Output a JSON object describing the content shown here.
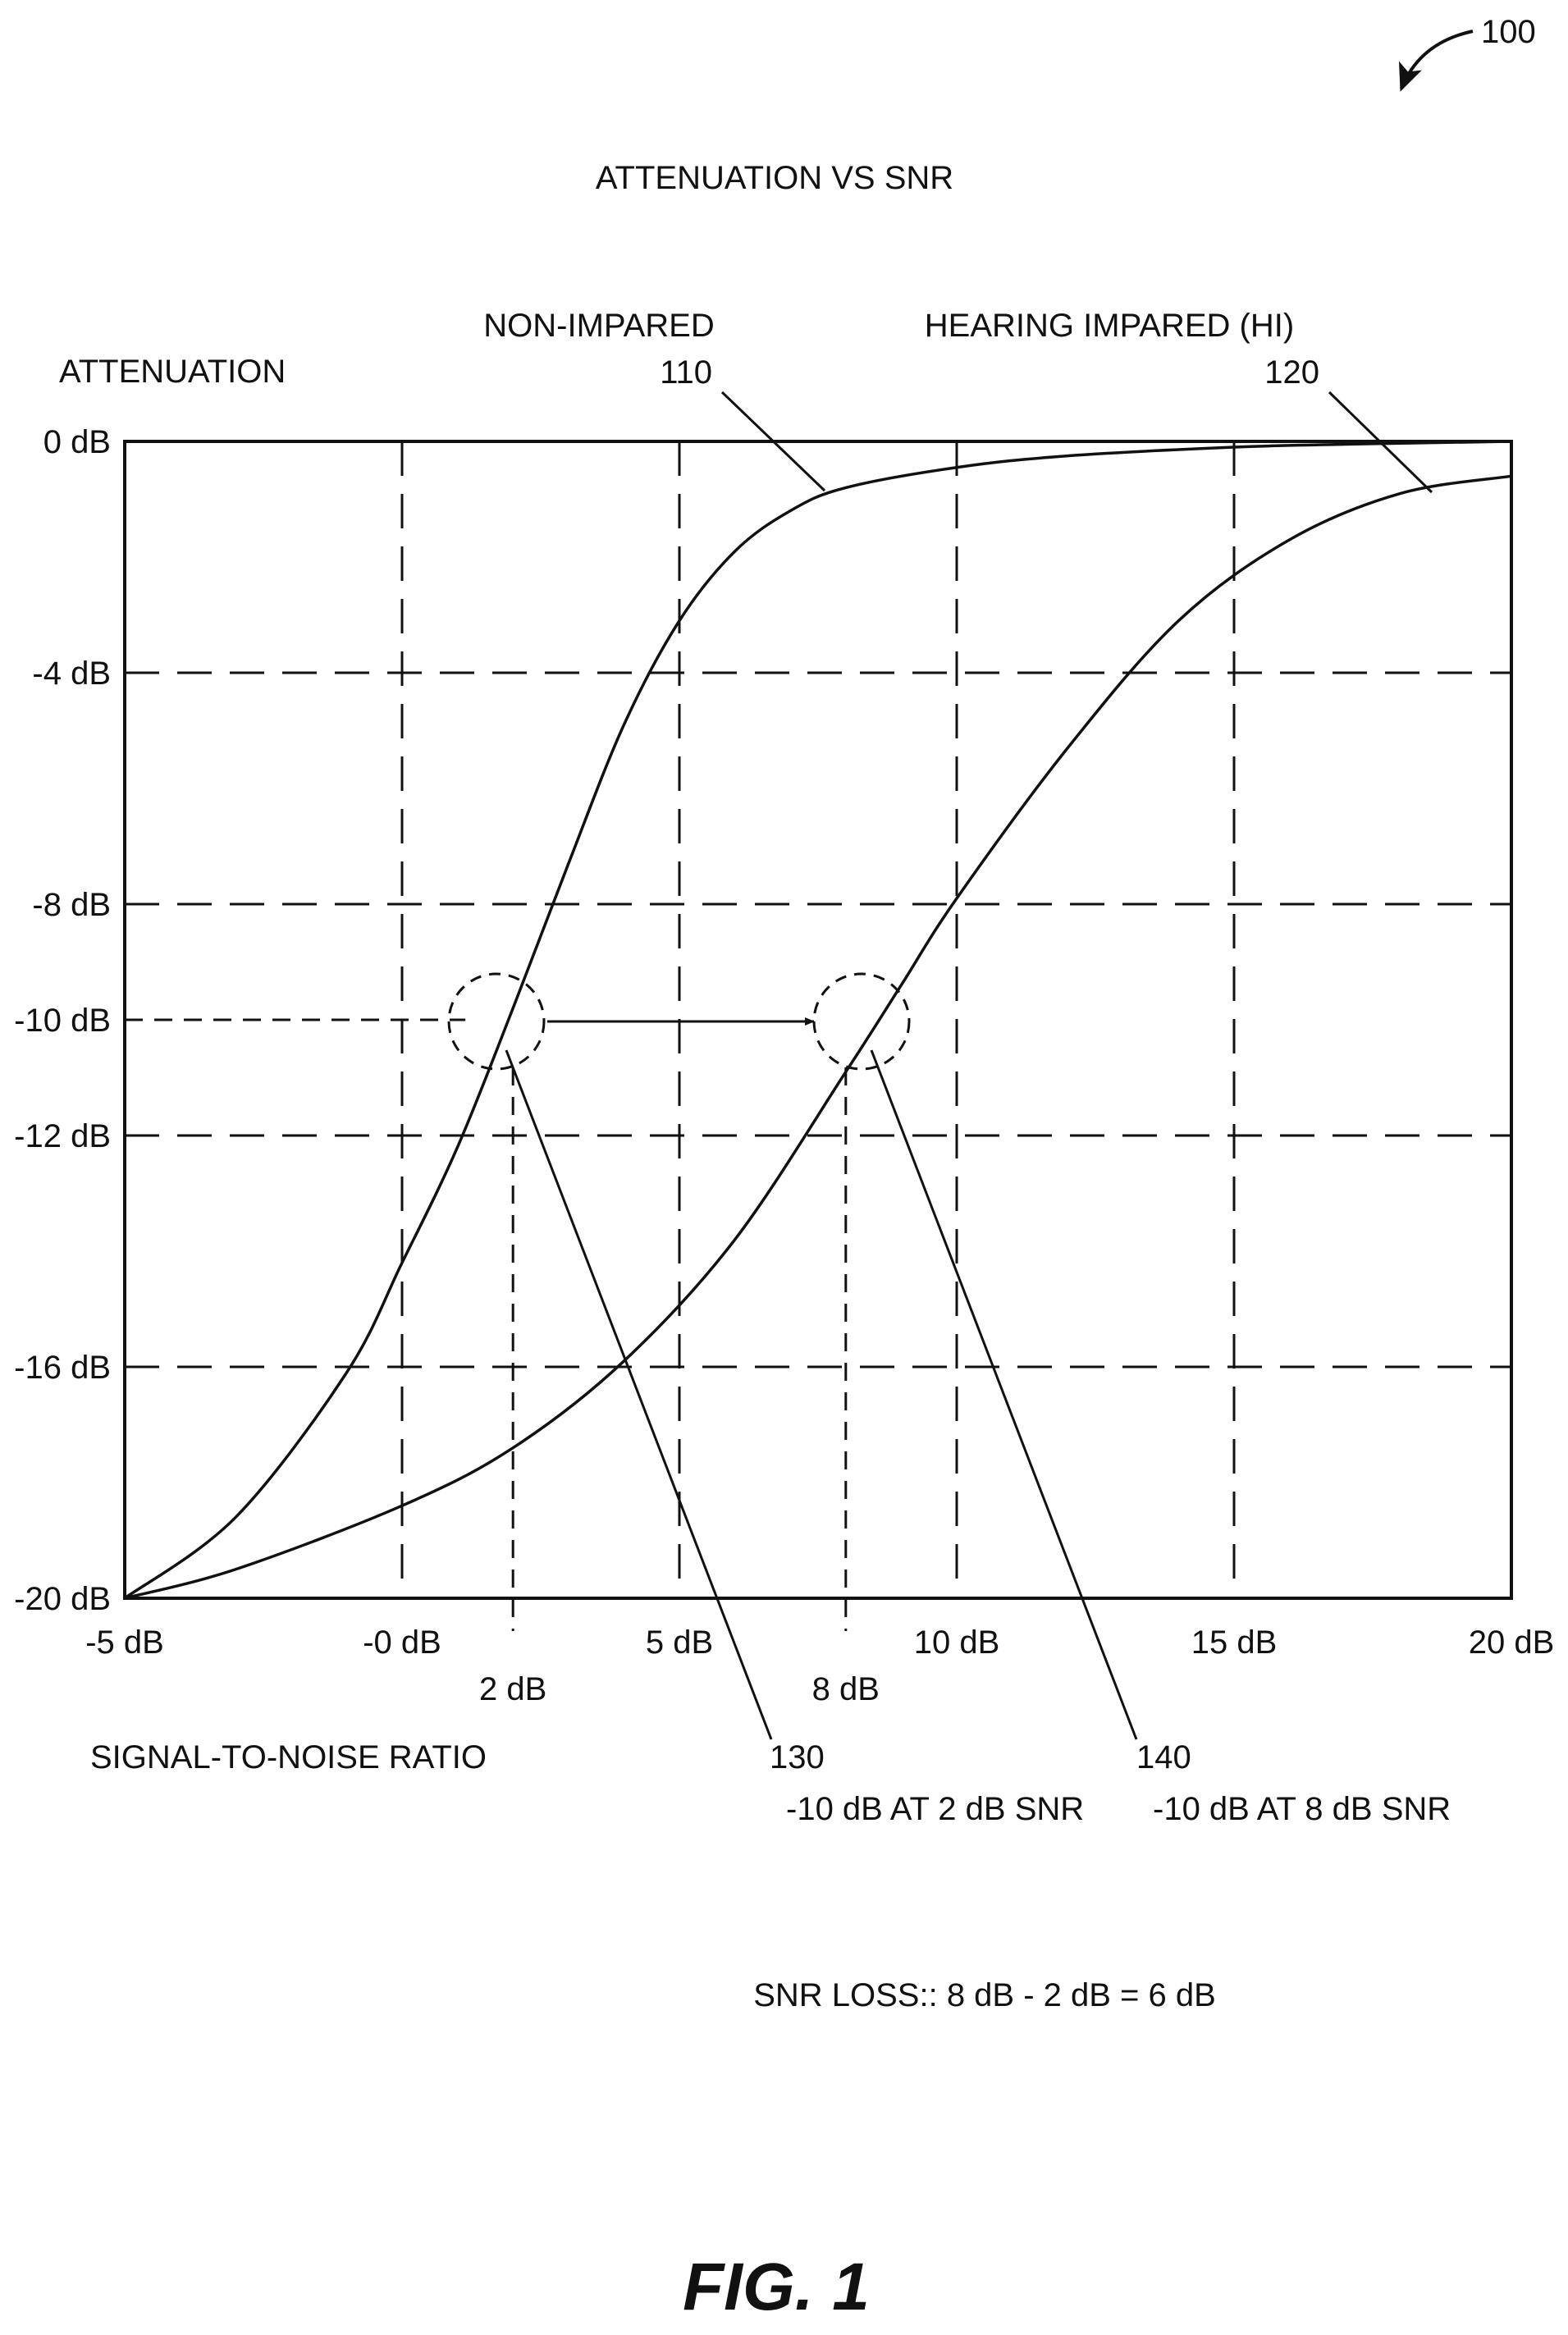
{
  "figure": {
    "ref_number": "100",
    "caption": "FIG. 1",
    "snr_loss_note": "SNR LOSS:: 8 dB - 2 dB = 6 dB"
  },
  "chart_data": {
    "type": "line",
    "title": "ATTENUATION VS SNR",
    "xlabel": "SIGNAL-TO-NOISE RATIO",
    "ylabel": "ATTENUATION",
    "xlim": [
      -5,
      20
    ],
    "ylim": [
      -20,
      0
    ],
    "grid": true,
    "x_ticks": [
      {
        "value": -5,
        "label": "-5 dB"
      },
      {
        "value": 0,
        "label": "-0 dB"
      },
      {
        "value": 5,
        "label": "5 dB"
      },
      {
        "value": 10,
        "label": "10 dB"
      },
      {
        "value": 15,
        "label": "15 dB"
      },
      {
        "value": 20,
        "label": "20 dB"
      }
    ],
    "x_extra_ticks": [
      {
        "value": 2,
        "label": "2 dB"
      },
      {
        "value": 8,
        "label": "8 dB"
      }
    ],
    "y_ticks": [
      {
        "value": 0,
        "label": "0 dB"
      },
      {
        "value": -4,
        "label": "-4 dB"
      },
      {
        "value": -8,
        "label": "-8 dB"
      },
      {
        "value": -10,
        "label": "-10 dB"
      },
      {
        "value": -12,
        "label": "-12 dB"
      },
      {
        "value": -16,
        "label": "-16 dB"
      },
      {
        "value": -20,
        "label": "-20 dB"
      }
    ],
    "series": [
      {
        "name": "NON-IMPARED",
        "ref": "110",
        "x": [
          -5,
          -3,
          -1,
          0,
          1,
          2,
          3,
          4,
          5,
          6,
          7,
          8,
          10,
          12,
          15,
          17,
          20
        ],
        "y": [
          -20,
          -18.6,
          -16.1,
          -14.2,
          -12.2,
          -9.8,
          -7.3,
          -4.9,
          -3.1,
          -1.9,
          -1.2,
          -0.8,
          -0.45,
          -0.25,
          -0.1,
          -0.05,
          0
        ]
      },
      {
        "name": "HEARING IMPARED (HI)",
        "ref": "120",
        "x": [
          -5,
          -3,
          0,
          2,
          4,
          6,
          8,
          9,
          10,
          12,
          14,
          16,
          18,
          20
        ],
        "y": [
          -20,
          -19.5,
          -18.4,
          -17.4,
          -15.9,
          -13.8,
          -10.9,
          -9.4,
          -7.9,
          -5.3,
          -3.1,
          -1.7,
          -0.9,
          -0.6
        ]
      }
    ],
    "annotations": [
      {
        "ref": "130",
        "text": "-10 dB AT 2 dB SNR",
        "x": 2,
        "y": -10
      },
      {
        "ref": "140",
        "text": "-10 dB AT 8 dB SNR",
        "x": 8,
        "y": -10
      }
    ]
  }
}
